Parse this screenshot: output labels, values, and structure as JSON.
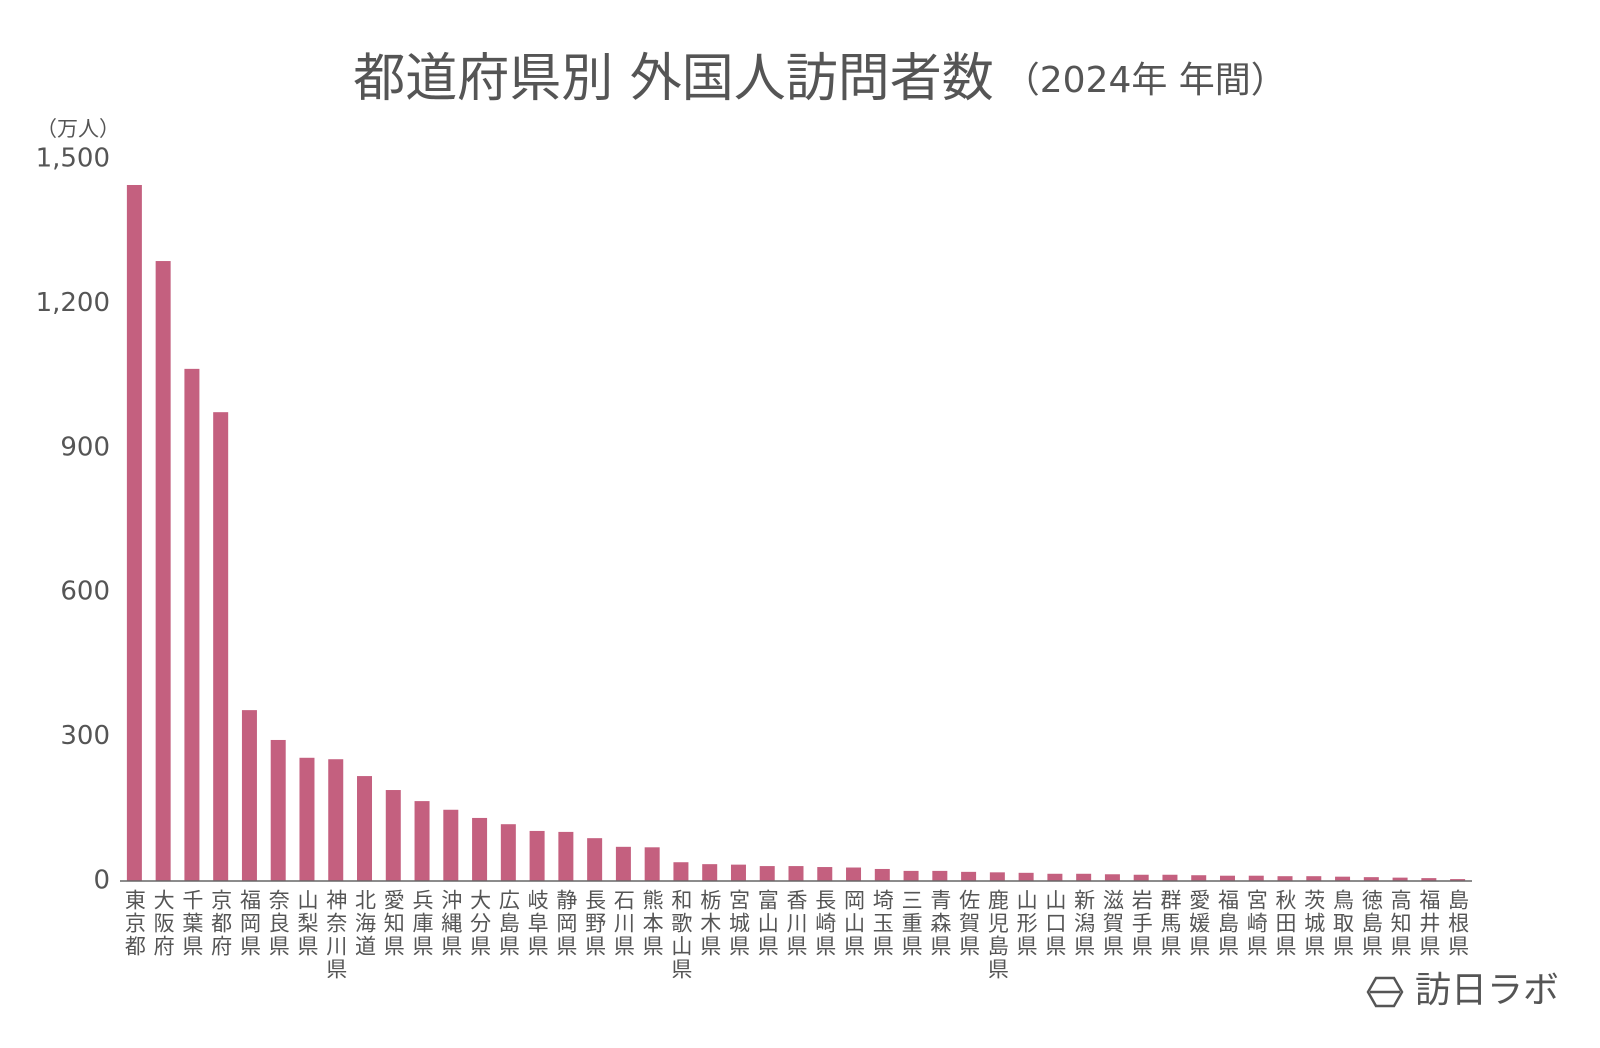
{
  "chart_data": {
    "type": "bar",
    "title": "都道府県別 外国人訪問者数",
    "subtitle": "（2024年 年間）",
    "y_label": "（万人）",
    "brand": "訪日ラボ",
    "color": "#c4607f",
    "grid": false,
    "ylim": [
      0,
      1500
    ],
    "yticks": [
      0,
      300,
      600,
      900,
      {
        "value": 1200,
        "label": "1,200"
      },
      {
        "value": 1500,
        "label": "1,500"
      }
    ],
    "categories": [
      "東京都",
      "大阪府",
      "千葉県",
      "京都府",
      "福岡県",
      "奈良県",
      "山梨県",
      "神奈川県",
      "北海道",
      "愛知県",
      "兵庫県",
      "沖縄県",
      "大分県",
      "広島県",
      "岐阜県",
      "静岡県",
      "長野県",
      "石川県",
      "熊本県",
      "和歌山県",
      "栃木県",
      "宮城県",
      "富山県",
      "香川県",
      "長崎県",
      "岡山県",
      "埼玉県",
      "三重県",
      "青森県",
      "佐賀県",
      "鹿児島県",
      "山形県",
      "山口県",
      "新潟県",
      "滋賀県",
      "岩手県",
      "群馬県",
      "愛媛県",
      "福島県",
      "宮崎県",
      "秋田県",
      "茨城県",
      "鳥取県",
      "徳島県",
      "高知県",
      "福井県",
      "島根県"
    ],
    "values": [
      1446,
      1288,
      1064,
      974,
      355,
      293,
      256,
      253,
      218,
      189,
      166,
      148,
      131,
      118,
      104,
      102,
      89,
      71,
      70,
      39,
      35,
      34,
      31,
      31,
      29,
      28,
      25,
      21,
      21,
      19,
      18,
      17,
      15,
      15,
      14,
      13,
      13,
      12,
      11,
      11,
      10,
      10,
      9,
      8,
      7,
      6,
      4
    ]
  }
}
